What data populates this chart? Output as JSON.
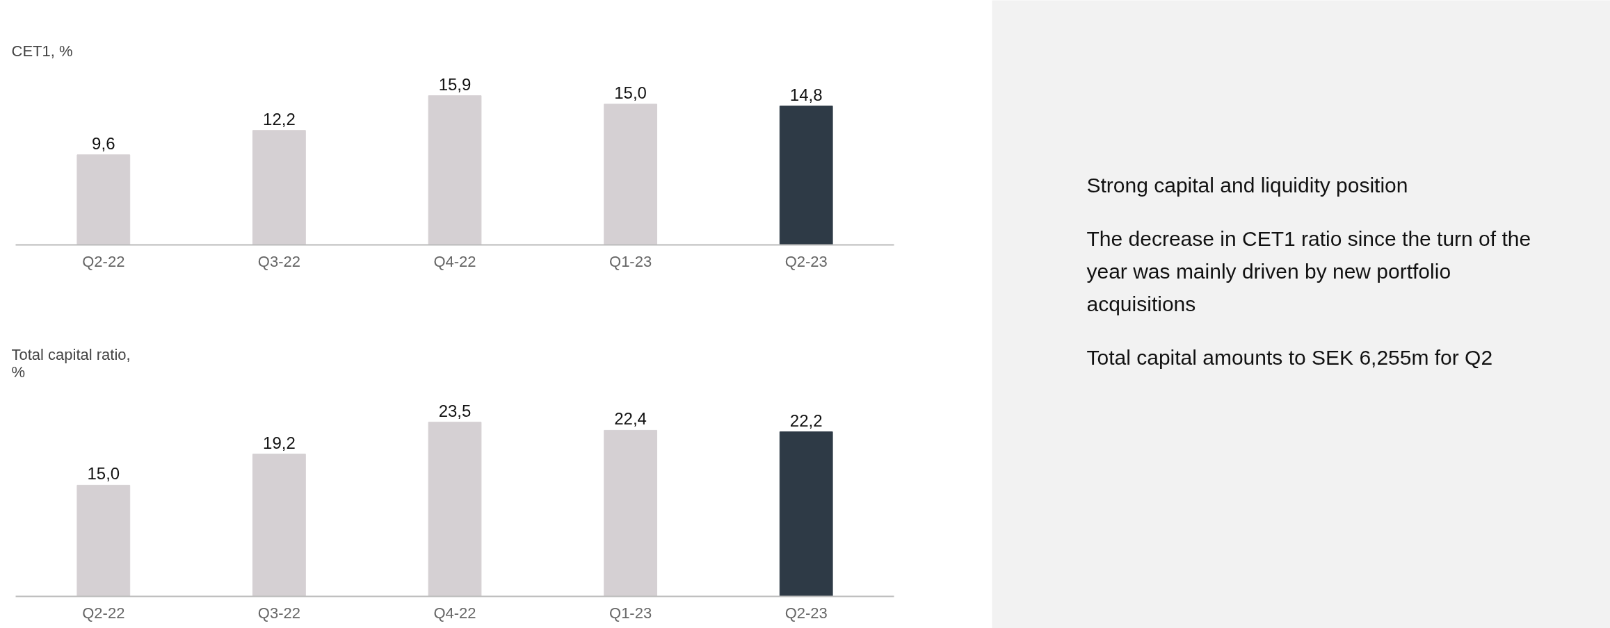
{
  "chart_data": [
    {
      "type": "bar",
      "title": "CET1, %",
      "categories": [
        "Q2-22",
        "Q3-22",
        "Q4-22",
        "Q1-23",
        "Q2-23"
      ],
      "values": [
        9.6,
        12.2,
        15.9,
        15.0,
        14.8
      ],
      "value_labels": [
        "9,6",
        "12,2",
        "15,9",
        "15,0",
        "14,8"
      ],
      "colors": [
        "#d5d0d3",
        "#d5d0d3",
        "#d5d0d3",
        "#d5d0d3",
        "#2e3a46"
      ]
    },
    {
      "type": "bar",
      "title": "Total capital ratio, %",
      "categories": [
        "Q2-22",
        "Q3-22",
        "Q4-22",
        "Q1-23",
        "Q2-23"
      ],
      "values": [
        15.0,
        19.2,
        23.5,
        22.4,
        22.2
      ],
      "value_labels": [
        "15,0",
        "19,2",
        "23,5",
        "22,4",
        "22,2"
      ],
      "colors": [
        "#d5d0d3",
        "#d5d0d3",
        "#d5d0d3",
        "#d5d0d3",
        "#2e3a46"
      ]
    },
    {
      "type": "other",
      "annotations": [
        "Strong capital and liquidity position",
        "The decrease in CET1 ratio since the turn of the year was mainly driven by new portfolio acquisitions",
        "Total capital amounts to SEK 6,255m for Q2"
      ]
    }
  ]
}
